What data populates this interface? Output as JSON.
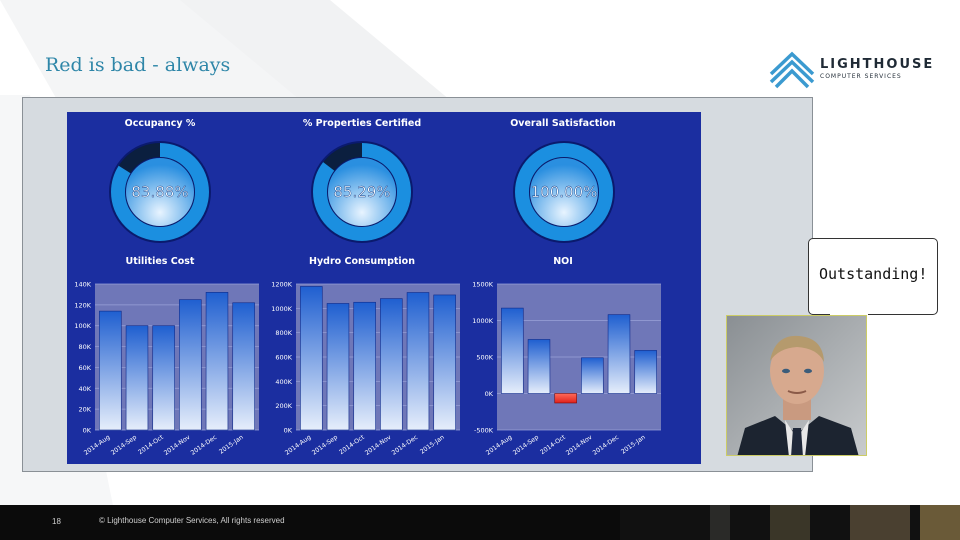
{
  "slide": {
    "title": "Red is bad - always",
    "page_number": "18",
    "copyright": "© Lighthouse Computer Services, All rights reserved"
  },
  "logo": {
    "name": "LIGHTHOUSE",
    "subtitle": "COMPUTER SERVICES"
  },
  "dashboard": {
    "gauges": [
      {
        "title": "Occupancy %",
        "value_text": "83.88%",
        "value": 83.88
      },
      {
        "title": "% Properties Certified",
        "value_text": "85.29%",
        "value": 85.29
      },
      {
        "title": "Overall Satisfaction",
        "value_text": "100.00%",
        "value": 100.0
      }
    ]
  },
  "bubble": {
    "text": "Outstanding!"
  },
  "colors": {
    "title": "#2e86a8",
    "dashboard_bg": "#1b2ea0",
    "bar_top": "#1f5fd0",
    "bar_bottom": "#e6eefb",
    "negative_bar": "#e0201a",
    "plot_bg": "#6f77b8"
  },
  "chart_data": [
    {
      "type": "bar",
      "title": "Utilities Cost",
      "categories": [
        "2014-Aug",
        "2014-Sep",
        "2014-Oct",
        "2014-Nov",
        "2014-Dec",
        "2015-Jan"
      ],
      "values": [
        114000,
        100000,
        100000,
        125000,
        132000,
        122000
      ],
      "ylim": [
        0,
        140000
      ],
      "yticks": [
        "0K",
        "20K",
        "40K",
        "60K",
        "80K",
        "100K",
        "120K",
        "140K"
      ],
      "grid": true
    },
    {
      "type": "bar",
      "title": "Hydro Consumption",
      "categories": [
        "2014-Aug",
        "2014-Sep",
        "2014-Oct",
        "2014-Nov",
        "2014-Dec",
        "2015-Jan"
      ],
      "values": [
        1180000,
        1040000,
        1050000,
        1080000,
        1130000,
        1110000
      ],
      "ylim": [
        0,
        1200000
      ],
      "yticks": [
        "0K",
        "200K",
        "400K",
        "600K",
        "800K",
        "1000K",
        "1200K"
      ],
      "grid": true
    },
    {
      "type": "bar",
      "title": "NOI",
      "categories": [
        "2014-Aug",
        "2014-Sep",
        "2014-Oct",
        "2014-Nov",
        "2014-Dec",
        "2015-Jan"
      ],
      "values": [
        1170000,
        740000,
        -130000,
        490000,
        1080000,
        590000
      ],
      "ylim": [
        -500000,
        1500000
      ],
      "yticks": [
        "-500K",
        "0K",
        "500K",
        "1000K",
        "1500K"
      ],
      "grid": true
    }
  ]
}
